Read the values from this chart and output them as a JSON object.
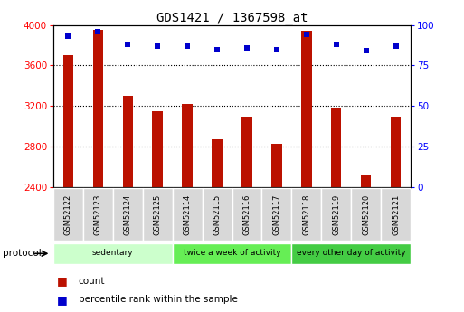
{
  "title": "GDS1421 / 1367598_at",
  "categories": [
    "GSM52122",
    "GSM52123",
    "GSM52124",
    "GSM52125",
    "GSM52114",
    "GSM52115",
    "GSM52116",
    "GSM52117",
    "GSM52118",
    "GSM52119",
    "GSM52120",
    "GSM52121"
  ],
  "counts": [
    3700,
    3950,
    3300,
    3150,
    3220,
    2870,
    3100,
    2830,
    3940,
    3185,
    2520,
    3100
  ],
  "percentiles": [
    93,
    96,
    88,
    87,
    87,
    85,
    86,
    85,
    94,
    88,
    84,
    87
  ],
  "bar_color": "#bb1100",
  "dot_color": "#0000cc",
  "ylim": [
    2400,
    4000
  ],
  "y2lim": [
    0,
    100
  ],
  "yticks": [
    2400,
    2800,
    3200,
    3600,
    4000
  ],
  "y2ticks": [
    0,
    25,
    50,
    75,
    100
  ],
  "groups": [
    {
      "label": "sedentary",
      "start": 0,
      "end": 4,
      "color": "#ccffcc"
    },
    {
      "label": "twice a week of activity",
      "start": 4,
      "end": 8,
      "color": "#66ee55"
    },
    {
      "label": "every other day of activity",
      "start": 8,
      "end": 12,
      "color": "#44cc44"
    }
  ],
  "protocol_label": "protocol",
  "legend_count": "count",
  "legend_percentile": "percentile rank within the sample",
  "bar_width": 0.35,
  "fig_bg": "#ffffff",
  "ax_bg": "#ffffff",
  "tick_label_bg": "#d8d8d8"
}
